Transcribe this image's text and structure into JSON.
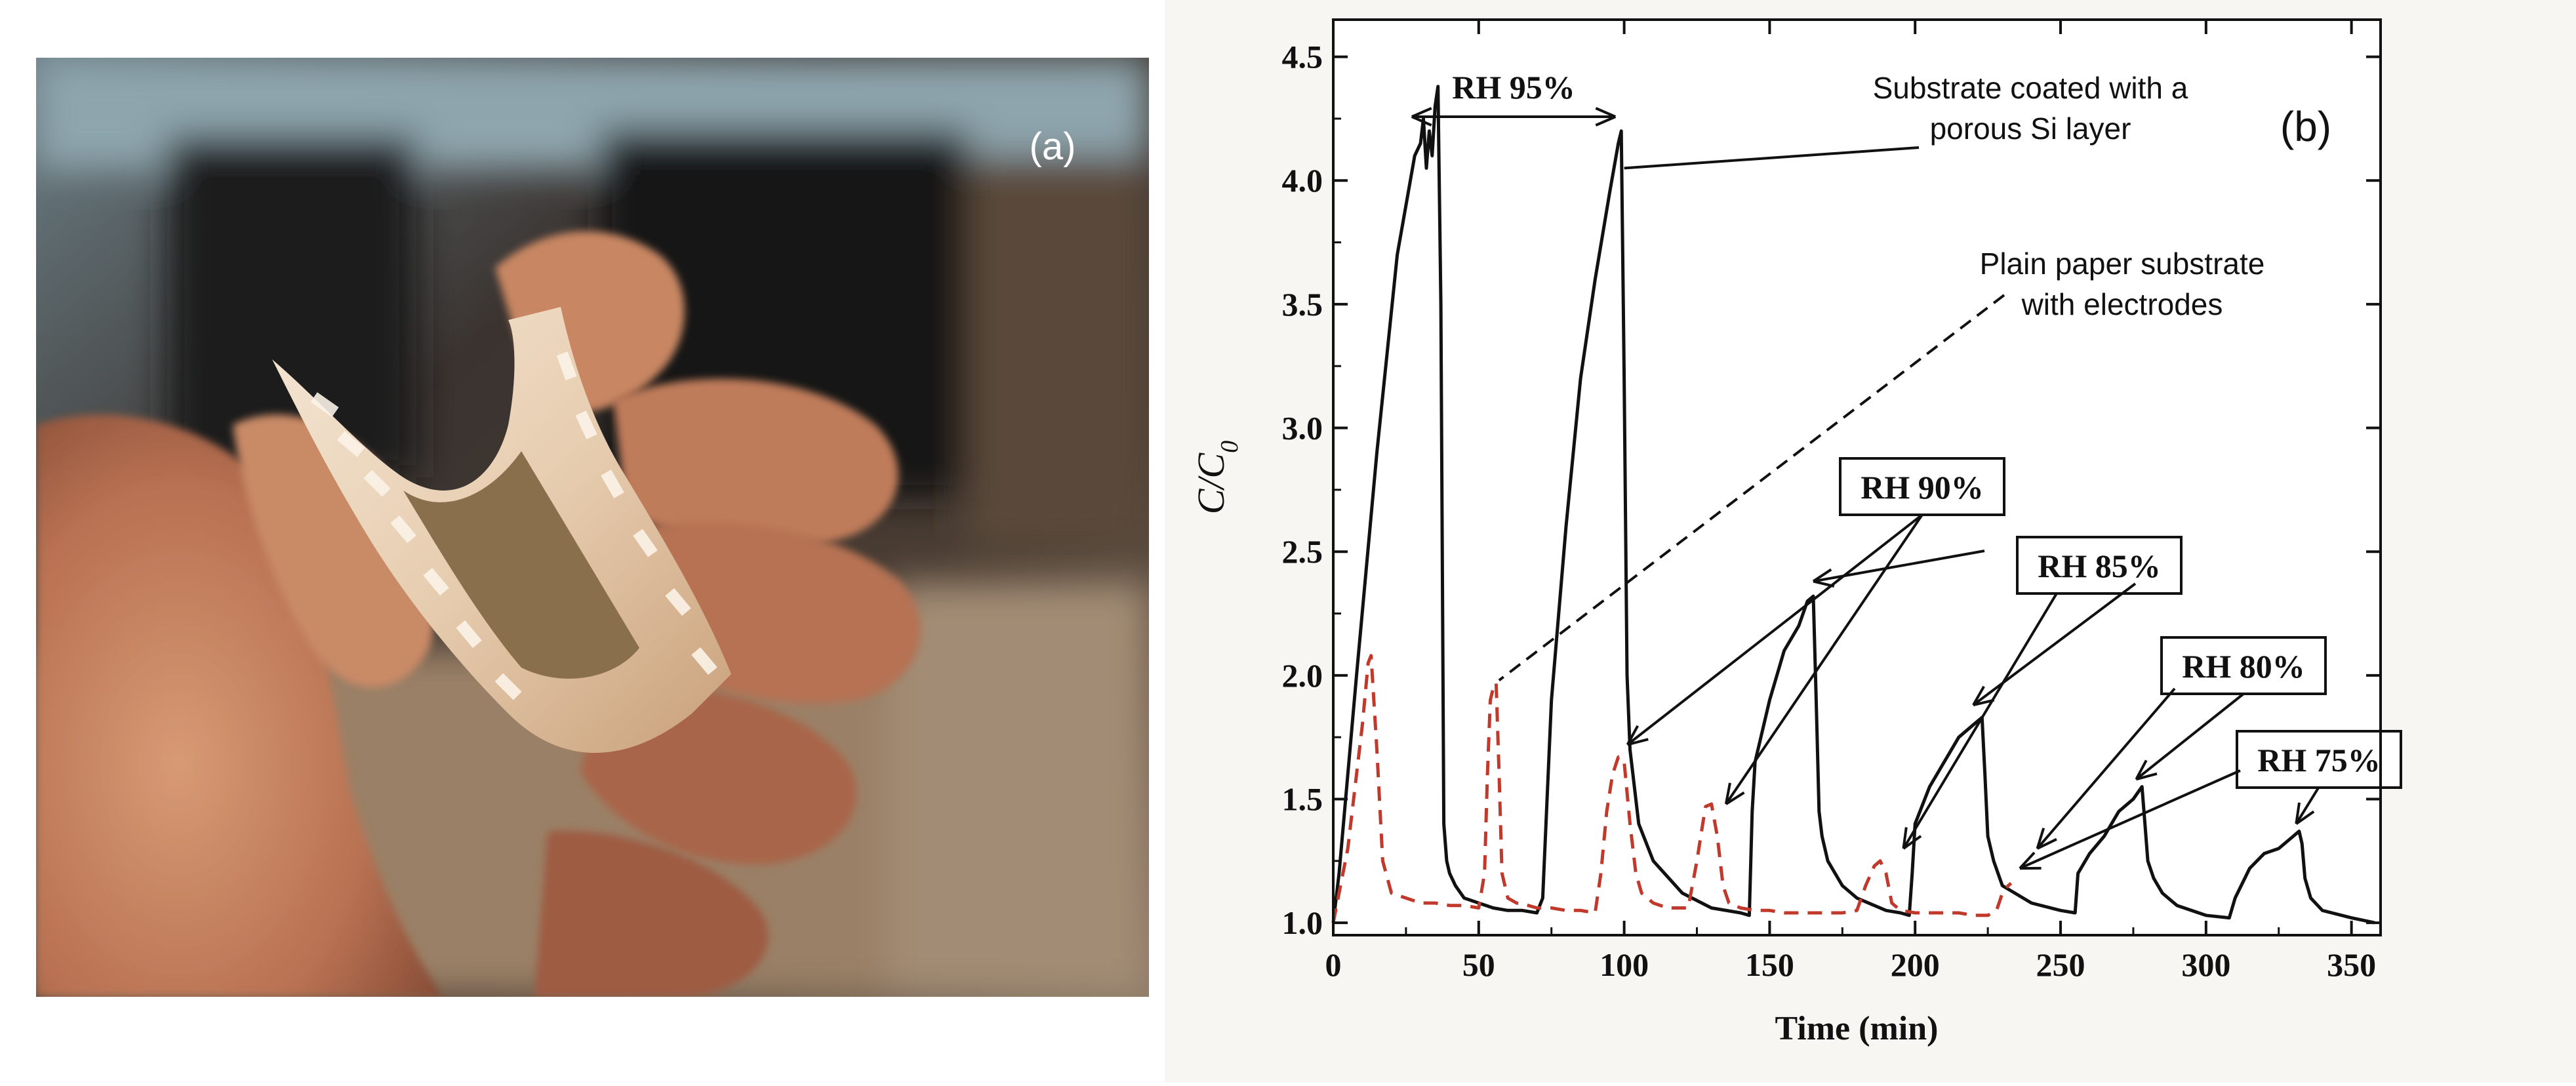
{
  "panel_a": {
    "label": "(a)",
    "photo": "hand holding a curled flexible paper humidity sensor with interdigitated electrodes"
  },
  "chart_data": {
    "type": "line",
    "panel_label": "(b)",
    "xlabel": "Time (min)",
    "ylabel": "C/C",
    "ylabel_sub": "0",
    "xlim": [
      0,
      360
    ],
    "ylim": [
      0.95,
      4.65
    ],
    "xticks": [
      "0",
      "50",
      "100",
      "150",
      "200",
      "250",
      "300",
      "350"
    ],
    "yticks": [
      "1.0",
      "1.5",
      "2.0",
      "2.5",
      "3.0",
      "3.5",
      "4.0",
      "4.5"
    ],
    "annotations": {
      "rh95": "RH 95%",
      "rh90": "RH 90%",
      "rh85": "RH 85%",
      "rh80": "RH 80%",
      "rh75": "RH 75%",
      "porous_line1": "Substrate coated with a",
      "porous_line2": "porous Si layer",
      "plain_line1": "Plain paper substrate",
      "plain_line2": "with electrodes"
    },
    "series": [
      {
        "name": "Substrate coated with a porous Si layer",
        "color": "#111111",
        "dash": "solid",
        "x": [
          0,
          2,
          8,
          15,
          22,
          28,
          30,
          31,
          32,
          33,
          34,
          35,
          36,
          37,
          38,
          39,
          40,
          42,
          45,
          50,
          55,
          60,
          65,
          70,
          72,
          75,
          80,
          85,
          90,
          95,
          98,
          99,
          100,
          101,
          102,
          105,
          110,
          120,
          130,
          140,
          143,
          144,
          145,
          150,
          155,
          160,
          163,
          165,
          166,
          167,
          168,
          170,
          175,
          180,
          190,
          195,
          198,
          199,
          200,
          205,
          210,
          215,
          220,
          223,
          224,
          225,
          227,
          230,
          240,
          250,
          255,
          256,
          260,
          265,
          270,
          275,
          278,
          279,
          280,
          282,
          285,
          290,
          300,
          308,
          310,
          315,
          320,
          325,
          330,
          332,
          333,
          334,
          336,
          340,
          350,
          358
        ],
        "y": [
          1.0,
          1.2,
          2.0,
          2.9,
          3.7,
          4.1,
          4.15,
          4.25,
          4.05,
          4.2,
          4.1,
          4.3,
          4.38,
          3.5,
          1.4,
          1.25,
          1.2,
          1.15,
          1.1,
          1.08,
          1.06,
          1.05,
          1.05,
          1.04,
          1.1,
          1.9,
          2.6,
          3.2,
          3.6,
          3.95,
          4.15,
          4.2,
          3.2,
          2.0,
          1.7,
          1.4,
          1.25,
          1.12,
          1.06,
          1.04,
          1.03,
          1.45,
          1.65,
          1.9,
          2.1,
          2.2,
          2.3,
          2.32,
          1.9,
          1.45,
          1.35,
          1.25,
          1.15,
          1.1,
          1.05,
          1.04,
          1.03,
          1.2,
          1.4,
          1.55,
          1.65,
          1.75,
          1.8,
          1.83,
          1.6,
          1.35,
          1.25,
          1.15,
          1.08,
          1.05,
          1.04,
          1.2,
          1.28,
          1.35,
          1.45,
          1.5,
          1.55,
          1.4,
          1.25,
          1.18,
          1.12,
          1.07,
          1.03,
          1.02,
          1.1,
          1.22,
          1.28,
          1.3,
          1.35,
          1.37,
          1.32,
          1.18,
          1.1,
          1.05,
          1.02,
          1.0
        ]
      },
      {
        "name": "Plain paper substrate with electrodes",
        "color": "#c0392b",
        "dash": "dashed",
        "x": [
          0,
          5,
          10,
          12,
          13,
          15,
          17,
          20,
          25,
          30,
          35,
          40,
          45,
          50,
          52,
          53,
          54,
          55,
          56,
          57,
          58,
          60,
          63,
          67,
          70,
          75,
          80,
          85,
          90,
          92,
          94,
          96,
          98,
          100,
          102,
          104,
          106,
          110,
          115,
          122,
          125,
          127,
          128,
          130,
          132,
          134,
          136,
          140,
          145,
          150,
          155,
          160,
          165,
          170,
          175,
          180,
          183,
          186,
          188,
          190,
          192,
          195,
          200,
          205,
          210,
          215,
          220,
          225,
          228,
          230,
          232,
          233
        ],
        "y": [
          1.0,
          1.3,
          1.8,
          2.05,
          2.08,
          1.7,
          1.25,
          1.12,
          1.1,
          1.08,
          1.08,
          1.07,
          1.07,
          1.06,
          1.2,
          1.6,
          1.9,
          1.95,
          1.97,
          1.6,
          1.2,
          1.1,
          1.08,
          1.07,
          1.06,
          1.06,
          1.05,
          1.05,
          1.04,
          1.2,
          1.45,
          1.6,
          1.67,
          1.65,
          1.4,
          1.2,
          1.12,
          1.08,
          1.06,
          1.06,
          1.25,
          1.4,
          1.47,
          1.48,
          1.35,
          1.15,
          1.08,
          1.06,
          1.05,
          1.05,
          1.04,
          1.04,
          1.04,
          1.04,
          1.04,
          1.05,
          1.15,
          1.23,
          1.25,
          1.2,
          1.08,
          1.05,
          1.04,
          1.04,
          1.04,
          1.04,
          1.03,
          1.03,
          1.05,
          1.12,
          1.15,
          1.16
        ]
      }
    ]
  }
}
